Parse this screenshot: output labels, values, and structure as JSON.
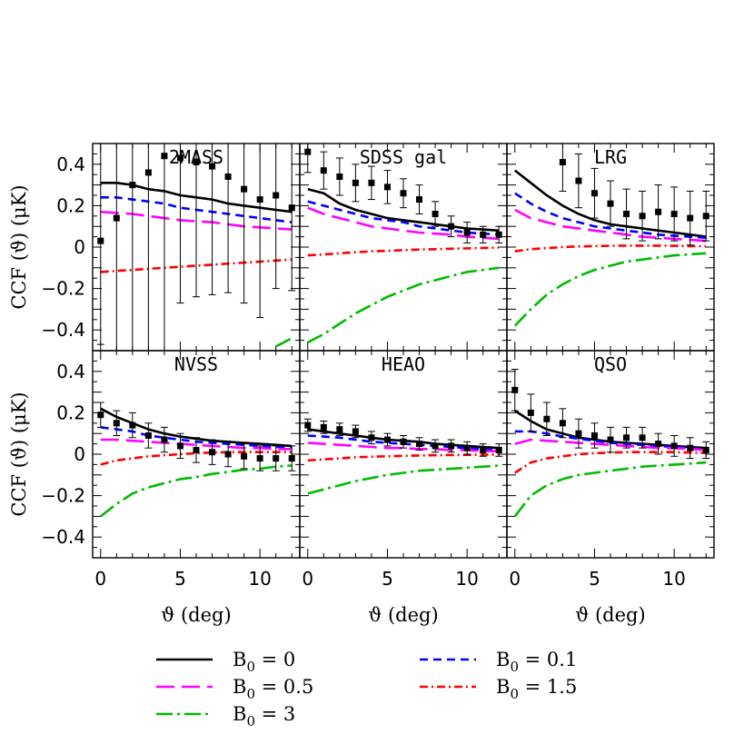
{
  "chart_data": {
    "type": "line",
    "grid": false,
    "layout": "2x3 panels, shared axes",
    "xlabel": "ϑ (deg)",
    "ylabel": "CCF (ϑ)  (μK)",
    "xlim": [
      -0.5,
      12.5
    ],
    "ylim": [
      -0.5,
      0.5
    ],
    "xticks": [
      "0",
      "5",
      "10"
    ],
    "yticks": [
      "−0.4",
      "−0.2",
      "0",
      "0.2",
      "0.4"
    ],
    "legend": {
      "placement": "bottom",
      "entries": [
        {
          "label": "B0 = 0",
          "color": "#000000",
          "style": "solid"
        },
        {
          "label": "B0 = 0.1",
          "color": "#0000ff",
          "style": "dashed"
        },
        {
          "label": "B0 = 0.5",
          "color": "#ff00ff",
          "style": "long-dashed"
        },
        {
          "label": "B0 = 1.5",
          "color": "#ff0000",
          "style": "dash-dot"
        },
        {
          "label": "B0 = 3",
          "color": "#00bb00",
          "style": "long-dash-dot"
        }
      ]
    },
    "x": [
      0,
      1,
      2,
      3,
      4,
      5,
      6,
      7,
      8,
      9,
      10,
      11,
      12
    ],
    "panels": [
      {
        "name": "2MASS",
        "data_y": [
          0.03,
          0.14,
          0.3,
          0.36,
          0.44,
          0.43,
          0.41,
          0.39,
          0.34,
          0.28,
          0.23,
          0.25,
          0.19
        ],
        "data_err": [
          0.5,
          0.8,
          0.9,
          0.92,
          0.95,
          0.7,
          0.65,
          0.62,
          0.56,
          0.55,
          0.57,
          0.45,
          0.4
        ],
        "series": [
          {
            "label": "B0 = 0",
            "values": [
              0.31,
              0.31,
              0.3,
              0.28,
              0.27,
              0.25,
              0.24,
              0.23,
              0.21,
              0.2,
              0.19,
              0.18,
              0.17
            ]
          },
          {
            "label": "B0 = 0.1",
            "values": [
              0.24,
              0.24,
              0.23,
              0.22,
              0.21,
              0.19,
              0.18,
              0.17,
              0.16,
              0.15,
              0.14,
              0.13,
              0.12
            ]
          },
          {
            "label": "B0 = 0.5",
            "values": [
              0.17,
              0.165,
              0.16,
              0.15,
              0.14,
              0.13,
              0.125,
              0.12,
              0.11,
              0.1,
              0.095,
              0.09,
              0.085
            ]
          },
          {
            "label": "B0 = 1.5",
            "values": [
              -0.12,
              -0.115,
              -0.11,
              -0.105,
              -0.1,
              -0.095,
              -0.09,
              -0.085,
              -0.08,
              -0.075,
              -0.07,
              -0.065,
              -0.06
            ]
          },
          {
            "label": "B0 = 3",
            "values": [
              null,
              null,
              null,
              null,
              null,
              null,
              null,
              null,
              null,
              null,
              null,
              -0.48,
              -0.44
            ]
          }
        ]
      },
      {
        "name": "SDSS gal",
        "data_y": [
          0.46,
          0.37,
          0.34,
          0.31,
          0.31,
          0.29,
          0.26,
          0.23,
          0.16,
          0.1,
          0.07,
          0.06,
          0.06
        ],
        "data_err": [
          0.1,
          0.09,
          0.09,
          0.09,
          0.08,
          0.08,
          0.07,
          0.07,
          0.06,
          0.05,
          0.05,
          0.04,
          0.04
        ],
        "series": [
          {
            "label": "B0 = 0",
            "values": [
              0.28,
              0.26,
              0.21,
              0.18,
              0.16,
              0.14,
              0.13,
              0.12,
              0.11,
              0.1,
              0.09,
              0.085,
              0.08
            ]
          },
          {
            "label": "B0 = 0.1",
            "values": [
              0.22,
              0.2,
              0.18,
              0.16,
              0.14,
              0.13,
              0.12,
              0.1,
              0.09,
              0.08,
              0.07,
              0.065,
              0.06
            ]
          },
          {
            "label": "B0 = 0.5",
            "values": [
              0.19,
              0.16,
              0.14,
              0.12,
              0.1,
              0.09,
              0.08,
              0.07,
              0.065,
              0.06,
              0.05,
              0.045,
              0.04
            ]
          },
          {
            "label": "B0 = 1.5",
            "values": [
              -0.04,
              -0.035,
              -0.03,
              -0.025,
              -0.02,
              -0.018,
              -0.015,
              -0.012,
              -0.01,
              -0.008,
              -0.006,
              -0.004,
              -0.002
            ]
          },
          {
            "label": "B0 = 3",
            "values": [
              -0.46,
              -0.42,
              -0.37,
              -0.32,
              -0.28,
              -0.24,
              -0.21,
              -0.18,
              -0.16,
              -0.14,
              -0.12,
              -0.11,
              -0.1
            ]
          }
        ]
      },
      {
        "name": "LRG",
        "data_y": [
          null,
          null,
          null,
          0.41,
          0.32,
          0.26,
          0.21,
          0.16,
          0.15,
          0.17,
          0.16,
          0.14,
          0.15
        ],
        "data_err": [
          0,
          0,
          0,
          0.14,
          0.13,
          0.12,
          0.11,
          0.12,
          0.12,
          0.13,
          0.13,
          0.13,
          0.12
        ],
        "series": [
          {
            "label": "B0 = 0",
            "values": [
              0.37,
              0.31,
              0.25,
              0.2,
              0.16,
              0.13,
              0.11,
              0.1,
              0.09,
              0.08,
              0.07,
              0.06,
              0.05
            ]
          },
          {
            "label": "B0 = 0.1",
            "values": [
              0.26,
              0.21,
              0.17,
              0.14,
              0.12,
              0.1,
              0.09,
              0.08,
              0.07,
              0.06,
              0.055,
              0.05,
              0.045
            ]
          },
          {
            "label": "B0 = 0.5",
            "values": [
              0.18,
              0.14,
              0.12,
              0.1,
              0.09,
              0.08,
              0.07,
              0.06,
              0.05,
              0.045,
              0.04,
              0.035,
              0.03
            ]
          },
          {
            "label": "B0 = 1.5",
            "values": [
              -0.02,
              -0.01,
              -0.005,
              0.0,
              0.003,
              0.005,
              0.006,
              0.007,
              0.007,
              0.007,
              0.006,
              0.005,
              0.004
            ]
          },
          {
            "label": "B0 = 3",
            "values": [
              -0.38,
              -0.3,
              -0.23,
              -0.18,
              -0.14,
              -0.11,
              -0.09,
              -0.07,
              -0.06,
              -0.05,
              -0.04,
              -0.035,
              -0.03
            ]
          }
        ]
      },
      {
        "name": "NVSS",
        "data_y": [
          0.19,
          0.15,
          0.14,
          0.09,
          0.07,
          0.04,
          0.02,
          0.01,
          0.0,
          -0.01,
          -0.02,
          -0.02,
          -0.02
        ],
        "data_err": [
          0.06,
          0.06,
          0.06,
          0.06,
          0.06,
          0.06,
          0.06,
          0.06,
          0.06,
          0.06,
          0.06,
          0.06,
          0.06
        ],
        "series": [
          {
            "label": "B0 = 0",
            "values": [
              0.22,
              0.18,
              0.15,
              0.12,
              0.1,
              0.085,
              0.075,
              0.065,
              0.06,
              0.055,
              0.05,
              0.045,
              0.04
            ]
          },
          {
            "label": "B0 = 0.1",
            "values": [
              0.13,
              0.12,
              0.11,
              0.09,
              0.08,
              0.07,
              0.06,
              0.055,
              0.05,
              0.045,
              0.04,
              0.035,
              0.03
            ]
          },
          {
            "label": "B0 = 0.5",
            "values": [
              0.07,
              0.07,
              0.065,
              0.06,
              0.055,
              0.05,
              0.045,
              0.04,
              0.035,
              0.03,
              0.03,
              0.025,
              0.025
            ]
          },
          {
            "label": "B0 = 1.5",
            "values": [
              -0.05,
              -0.03,
              -0.02,
              -0.01,
              -0.005,
              0.0,
              0.005,
              0.008,
              0.01,
              0.01,
              0.01,
              0.01,
              0.01
            ]
          },
          {
            "label": "B0 = 3",
            "values": [
              -0.3,
              -0.24,
              -0.19,
              -0.16,
              -0.14,
              -0.12,
              -0.11,
              -0.095,
              -0.085,
              -0.075,
              -0.07,
              -0.06,
              -0.055
            ]
          }
        ]
      },
      {
        "name": "HEAO",
        "data_y": [
          0.14,
          0.13,
          0.12,
          0.11,
          0.08,
          0.07,
          0.06,
          0.05,
          0.04,
          0.04,
          0.03,
          0.02,
          0.02
        ],
        "data_err": [
          0.03,
          0.03,
          0.03,
          0.03,
          0.03,
          0.03,
          0.03,
          0.03,
          0.03,
          0.03,
          0.03,
          0.03,
          0.03
        ],
        "series": [
          {
            "label": "B0 = 0",
            "values": [
              0.12,
              0.11,
              0.1,
              0.09,
              0.08,
              0.07,
              0.065,
              0.06,
              0.05,
              0.045,
              0.04,
              0.035,
              0.03
            ]
          },
          {
            "label": "B0 = 0.1",
            "values": [
              0.09,
              0.085,
              0.08,
              0.07,
              0.06,
              0.055,
              0.05,
              0.045,
              0.04,
              0.035,
              0.03,
              0.025,
              0.02
            ]
          },
          {
            "label": "B0 = 0.5",
            "values": [
              0.055,
              0.05,
              0.045,
              0.04,
              0.035,
              0.03,
              0.03,
              0.025,
              0.025,
              0.02,
              0.02,
              0.015,
              0.015
            ]
          },
          {
            "label": "B0 = 1.5",
            "values": [
              -0.03,
              -0.025,
              -0.02,
              -0.015,
              -0.012,
              -0.01,
              -0.008,
              -0.006,
              -0.005,
              -0.004,
              -0.003,
              -0.002,
              -0.001
            ]
          },
          {
            "label": "B0 = 3",
            "values": [
              -0.19,
              -0.17,
              -0.15,
              -0.13,
              -0.115,
              -0.1,
              -0.09,
              -0.08,
              -0.075,
              -0.07,
              -0.065,
              -0.06,
              -0.055
            ]
          }
        ]
      },
      {
        "name": "QSO",
        "data_y": [
          0.31,
          0.2,
          0.17,
          0.15,
          0.1,
          0.09,
          0.07,
          0.08,
          0.08,
          0.05,
          0.04,
          0.03,
          0.02
        ],
        "data_err": [
          0.1,
          0.09,
          0.08,
          0.07,
          0.07,
          0.06,
          0.06,
          0.05,
          0.05,
          0.05,
          0.05,
          0.05,
          0.04
        ],
        "series": [
          {
            "label": "B0 = 0",
            "values": [
              0.21,
              0.16,
              0.12,
              0.1,
              0.08,
              0.07,
              0.06,
              0.055,
              0.05,
              0.045,
              0.04,
              0.035,
              0.03
            ]
          },
          {
            "label": "B0 = 0.1",
            "values": [
              0.11,
              0.11,
              0.1,
              0.085,
              0.075,
              0.065,
              0.055,
              0.05,
              0.045,
              0.04,
              0.035,
              0.03,
              0.025
            ]
          },
          {
            "label": "B0 = 0.5",
            "values": [
              0.05,
              0.07,
              0.065,
              0.06,
              0.055,
              0.05,
              0.045,
              0.04,
              0.035,
              0.03,
              0.03,
              0.025,
              0.02
            ]
          },
          {
            "label": "B0 = 1.5",
            "values": [
              -0.09,
              -0.04,
              -0.02,
              -0.01,
              0.0,
              0.005,
              0.008,
              0.01,
              0.01,
              0.01,
              0.01,
              0.008,
              0.006
            ]
          },
          {
            "label": "B0 = 3",
            "values": [
              -0.3,
              -0.2,
              -0.15,
              -0.12,
              -0.1,
              -0.09,
              -0.08,
              -0.07,
              -0.06,
              -0.055,
              -0.05,
              -0.045,
              -0.04
            ]
          }
        ]
      }
    ]
  }
}
